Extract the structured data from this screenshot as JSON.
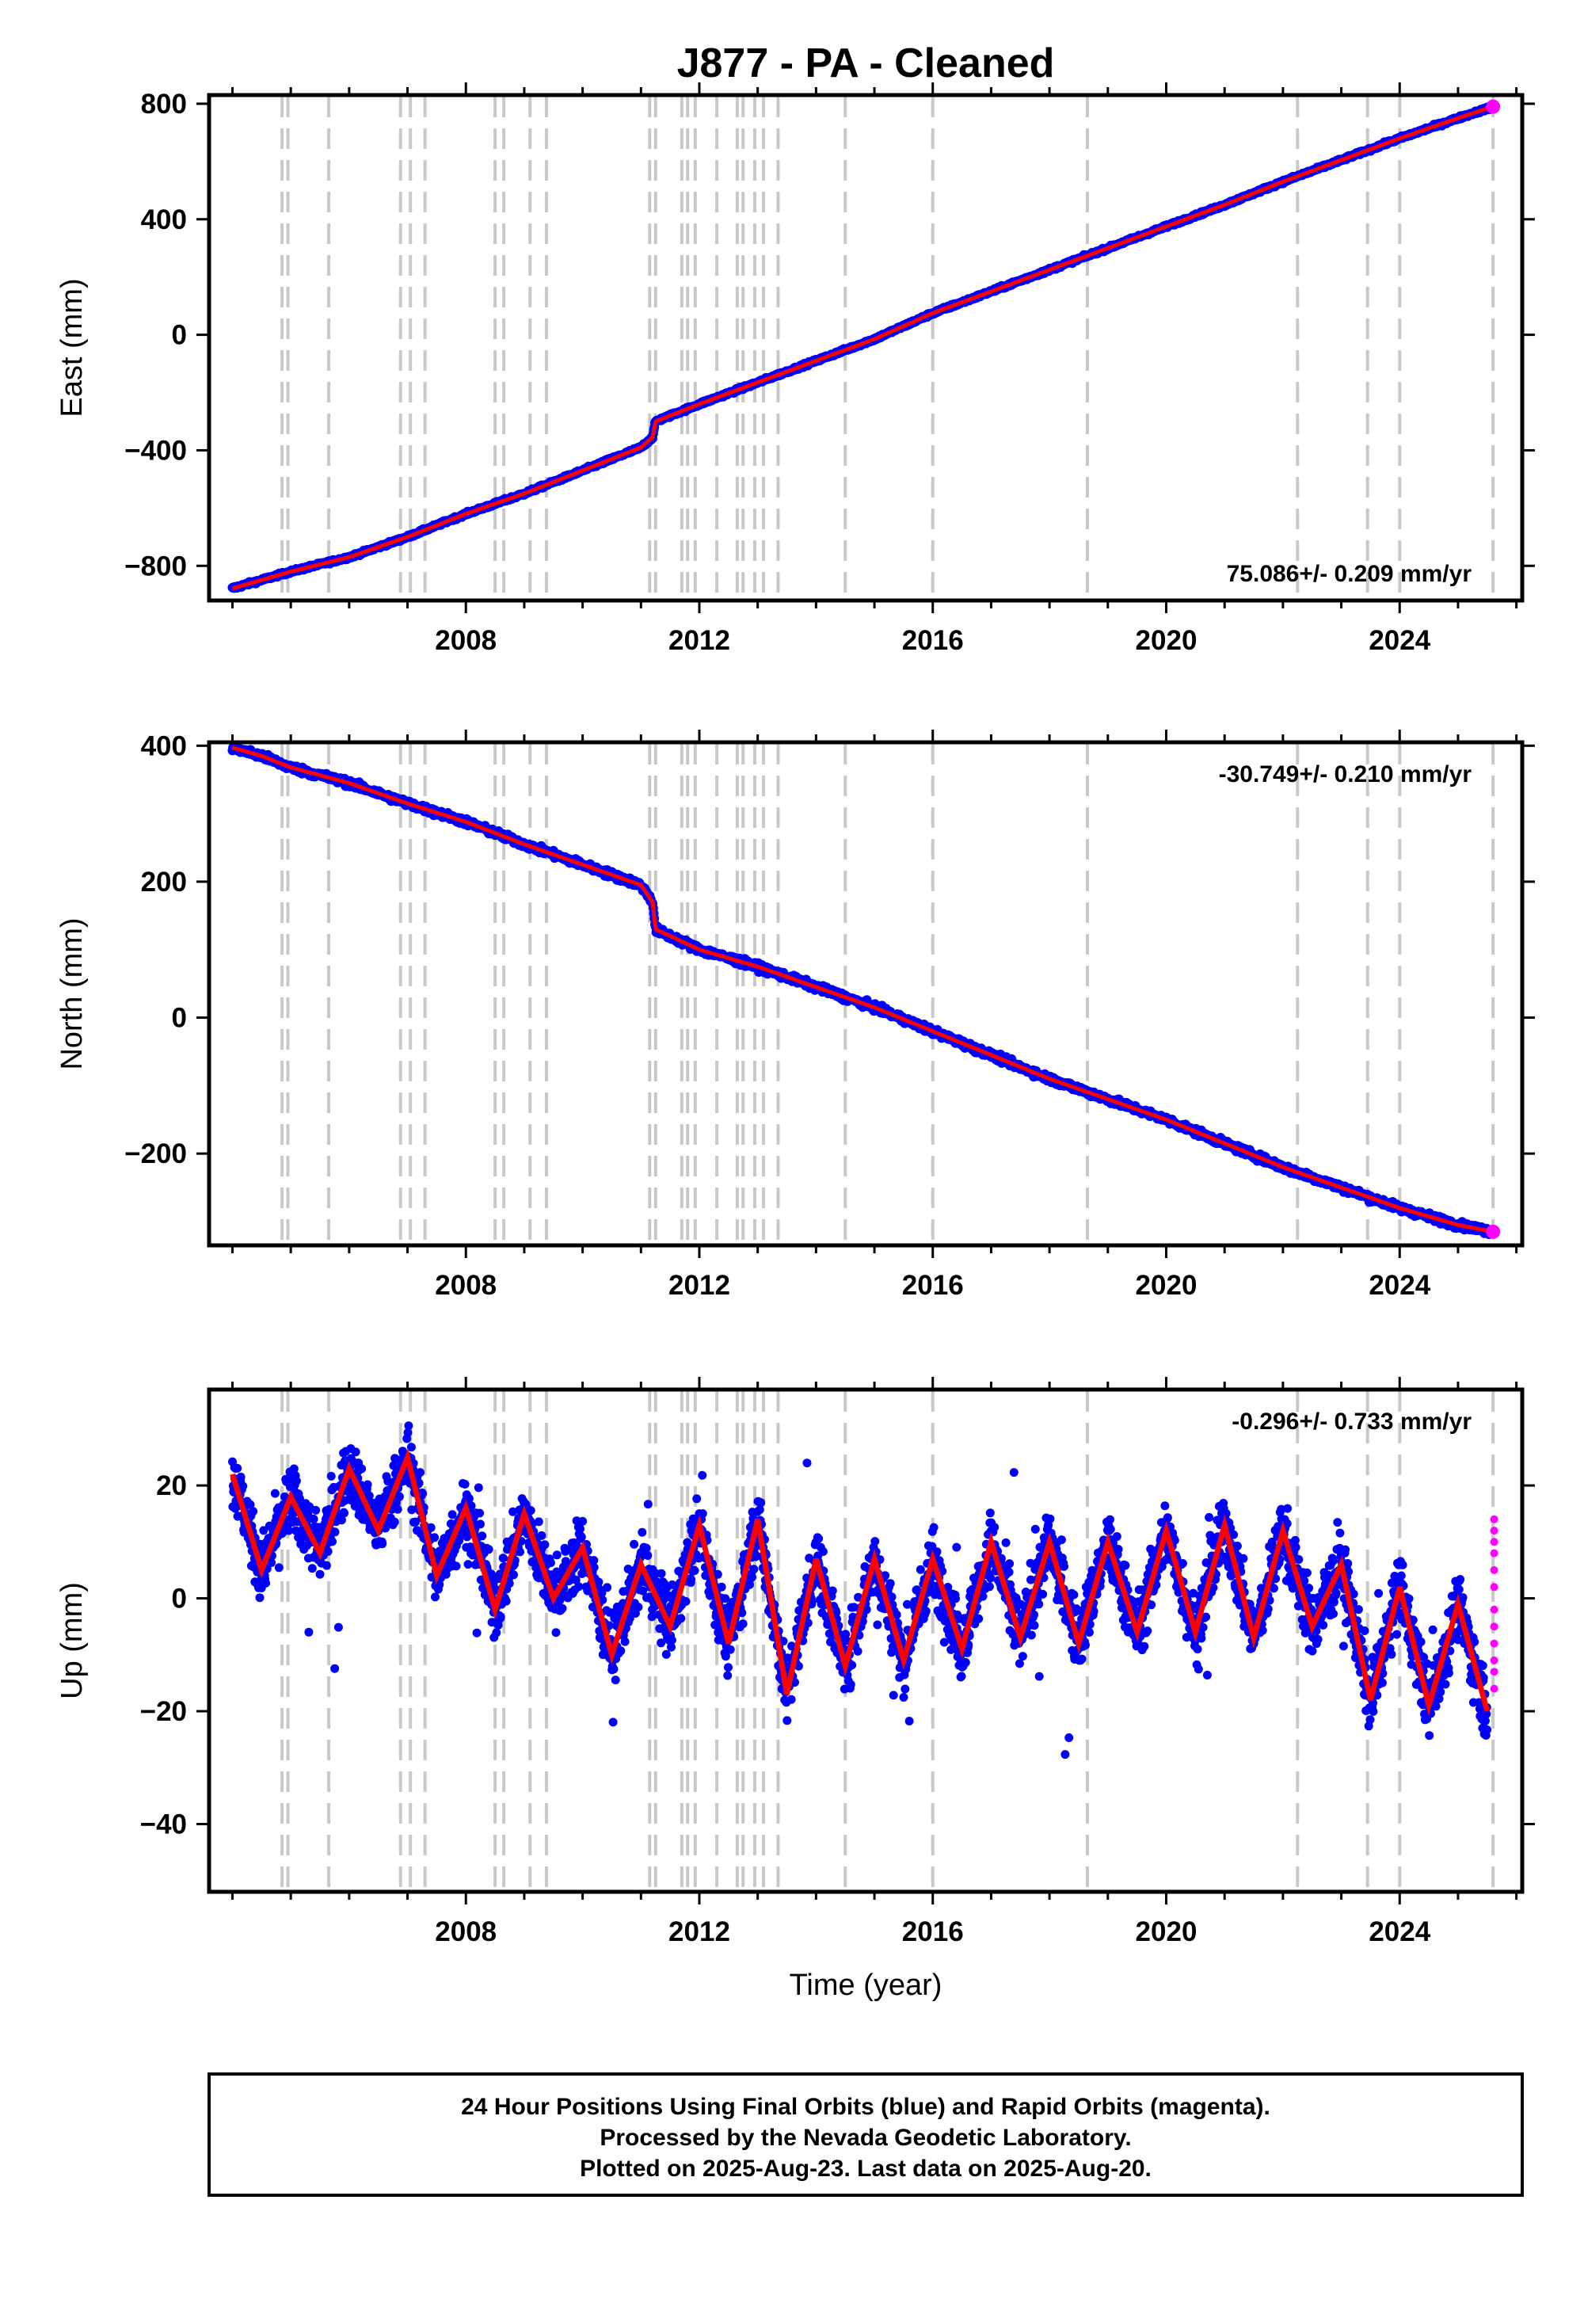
{
  "chart_data": {
    "type": "scatter",
    "title": "J877  - PA - Cleaned",
    "xlabel": "Time (year)",
    "xlim": [
      2003.6,
      2026.1
    ],
    "xticks": [
      2008,
      2012,
      2016,
      2020,
      2024
    ],
    "events": [
      2004.85,
      2004.95,
      2005.65,
      2006.88,
      2007.05,
      2007.3,
      2008.5,
      2008.65,
      2009.1,
      2009.38,
      2011.15,
      2011.25,
      2011.7,
      2011.8,
      2011.93,
      2012.3,
      2012.65,
      2012.75,
      2012.95,
      2013.1,
      2013.35,
      2014.5,
      2016.0,
      2018.65,
      2022.25,
      2023.45,
      2024.0,
      2025.6
    ],
    "panels": [
      {
        "name": "east",
        "ylabel": "East (mm)",
        "ylim": [
          -920,
          830
        ],
        "yticks": [
          800,
          400,
          0,
          -400,
          -800
        ],
        "rate_text": "75.086+/- 0.209 mm/yr",
        "series": [
          {
            "name": "Final Orbits",
            "color": "#0000ff",
            "x": [
              2004.0,
              2005.0,
              2006.0,
              2007.0,
              2008.0,
              2009.0,
              2010.0,
              2011.0,
              2011.2,
              2011.25,
              2012.0,
              2013.0,
              2014.0,
              2015.0,
              2016.0,
              2017.0,
              2018.0,
              2019.0,
              2020.0,
              2021.0,
              2022.0,
              2023.0,
              2024.0,
              2025.0,
              2025.6
            ],
            "y": [
              -878,
              -820,
              -770,
              -700,
              -620,
              -550,
              -470,
              -390,
              -355,
              -300,
              -240,
              -165,
              -90,
              -15,
              75,
              150,
              225,
              300,
              375,
              450,
              530,
              605,
              680,
              750,
              790
            ]
          },
          {
            "name": "Rapid Orbits",
            "color": "#ff00ff",
            "x": [
              2025.6
            ],
            "y": [
              790
            ]
          }
        ]
      },
      {
        "name": "north",
        "ylabel": "North (mm)",
        "ylim": [
          -335,
          405
        ],
        "yticks": [
          400,
          200,
          0,
          -200
        ],
        "rate_text": "-30.749+/- 0.210 mm/yr",
        "series": [
          {
            "name": "Final Orbits",
            "color": "#0000ff",
            "x": [
              2004.0,
              2004.5,
              2005.0,
              2006.0,
              2007.0,
              2008.0,
              2009.0,
              2010.0,
              2011.0,
              2011.2,
              2011.25,
              2012.0,
              2013.0,
              2014.0,
              2015.0,
              2016.0,
              2017.0,
              2018.0,
              2019.0,
              2020.0,
              2021.0,
              2022.0,
              2023.0,
              2024.0,
              2025.0,
              2025.6
            ],
            "y": [
              397,
              385,
              368,
              345,
              315,
              288,
              255,
              225,
              195,
              170,
              130,
              100,
              75,
              45,
              15,
              -20,
              -55,
              -90,
              -120,
              -150,
              -185,
              -220,
              -250,
              -280,
              -305,
              -315
            ]
          },
          {
            "name": "Rapid Orbits",
            "color": "#ff00ff",
            "x": [
              2025.6
            ],
            "y": [
              -315
            ]
          }
        ]
      },
      {
        "name": "up",
        "ylabel": "Up (mm)",
        "ylim": [
          -52,
          37
        ],
        "yticks": [
          20,
          0,
          -20,
          -40
        ],
        "rate_text": "-0.296+/- 0.733 mm/yr",
        "series": [
          {
            "name": "Final Orbits",
            "color": "#0000ff",
            "x": [
              2004.0,
              2004.5,
              2005.0,
              2005.5,
              2006.0,
              2006.5,
              2007.0,
              2007.5,
              2008.0,
              2008.5,
              2009.0,
              2009.5,
              2010.0,
              2010.5,
              2011.0,
              2011.5,
              2012.0,
              2012.5,
              2013.0,
              2013.5,
              2014.0,
              2014.5,
              2015.0,
              2015.5,
              2016.0,
              2016.5,
              2017.0,
              2017.5,
              2018.0,
              2018.5,
              2019.0,
              2019.5,
              2020.0,
              2020.5,
              2021.0,
              2021.5,
              2022.0,
              2022.5,
              2023.0,
              2023.5,
              2024.0,
              2024.5,
              2025.0,
              2025.5
            ],
            "y": [
              22,
              5,
              18,
              8,
              23,
              12,
              25,
              4,
              16,
              -2,
              15,
              0,
              9,
              -10,
              6,
              -5,
              13,
              -8,
              14,
              -17,
              7,
              -12,
              7,
              -11,
              7,
              -9,
              10,
              -7,
              10,
              -8,
              10,
              -6,
              12,
              -6,
              13,
              -7,
              12,
              -5,
              6,
              -18,
              2,
              -19,
              -1,
              -20
            ]
          },
          {
            "name": "Rapid Orbits",
            "color": "#ff00ff",
            "x": [
              2025.62,
              2025.62,
              2025.62,
              2025.62,
              2025.62,
              2025.62,
              2025.62,
              2025.62,
              2025.62,
              2025.62,
              2025.62,
              2025.62
            ],
            "y": [
              14,
              12,
              10,
              8,
              5,
              2,
              -2,
              -5,
              -8,
              -11,
              -13,
              -16
            ]
          }
        ]
      }
    ]
  },
  "footer": {
    "line1": "24 Hour Positions Using Final Orbits (blue) and Rapid Orbits (magenta).",
    "line2": "Processed by the Nevada Geodetic Laboratory.",
    "line3": "Plotted on 2025-Aug-23. Last data on 2025-Aug-20."
  }
}
